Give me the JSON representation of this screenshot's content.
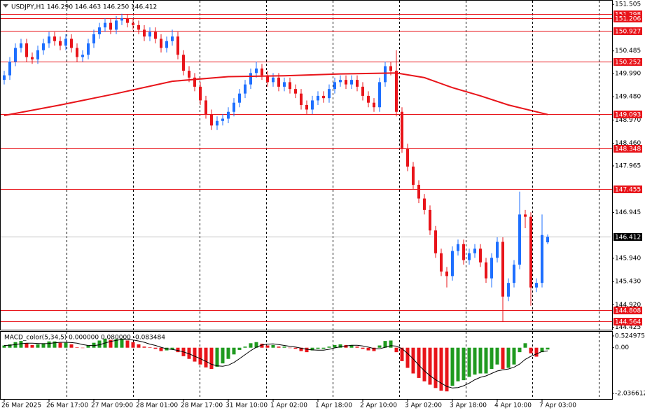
{
  "chart_data": {
    "type": "candlestick",
    "title": "USDJPY,H1  146.290 146.463 146.250 146.412",
    "open": [
      149.85,
      149.95,
      150.25,
      150.55,
      150.65,
      150.35,
      150.3,
      150.5,
      150.65,
      150.8,
      150.7,
      150.6,
      150.75,
      150.55,
      150.35,
      150.4,
      150.65,
      150.85,
      151.0,
      151.1,
      150.95,
      151.15,
      151.2,
      151.1,
      151.05,
      150.95,
      150.8,
      150.9,
      150.75,
      150.55,
      150.7,
      150.8,
      150.4,
      150.05,
      149.9,
      149.7,
      149.4,
      149.1,
      148.85,
      148.95,
      149.0,
      149.15,
      149.35,
      149.55,
      149.75,
      150.0,
      150.1,
      149.95,
      149.8,
      149.9,
      149.7,
      149.8,
      149.65,
      149.55,
      149.3,
      149.2,
      149.4,
      149.5,
      149.45,
      149.65,
      149.8,
      149.85,
      149.75,
      149.85,
      149.7,
      149.5,
      149.35,
      149.25,
      149.8,
      150.15,
      150.05,
      149.15,
      148.35,
      147.95,
      147.55,
      147.25,
      147.0,
      146.55,
      146.05,
      145.65,
      145.55,
      146.1,
      146.25,
      145.9,
      146.05,
      146.15,
      145.85,
      145.5,
      145.95,
      146.3,
      145.1,
      145.4,
      145.8,
      146.9,
      146.85,
      145.3,
      145.4,
      146.29
    ],
    "high": [
      150.05,
      150.35,
      150.65,
      150.75,
      150.75,
      150.45,
      150.6,
      150.75,
      150.9,
      150.9,
      150.8,
      150.85,
      150.85,
      150.65,
      150.5,
      150.75,
      150.95,
      151.1,
      151.2,
      151.2,
      151.25,
      151.3,
      151.28,
      151.2,
      151.15,
      151.05,
      151.0,
      151.0,
      150.85,
      150.8,
      150.95,
      150.9,
      150.5,
      150.15,
      150.0,
      149.8,
      149.5,
      149.2,
      149.05,
      149.1,
      149.25,
      149.45,
      149.65,
      149.85,
      150.1,
      150.25,
      150.2,
      150.05,
      150.0,
      150.0,
      149.9,
      149.9,
      149.75,
      149.65,
      149.4,
      149.5,
      149.6,
      149.6,
      149.75,
      149.9,
      149.95,
      149.95,
      149.95,
      149.95,
      149.8,
      149.6,
      149.45,
      149.9,
      150.25,
      150.25,
      150.5,
      149.25,
      148.45,
      148.05,
      147.65,
      147.35,
      147.1,
      146.65,
      146.15,
      145.75,
      146.2,
      146.35,
      146.35,
      146.15,
      146.25,
      146.25,
      145.95,
      146.05,
      146.4,
      146.4,
      145.5,
      145.9,
      147.4,
      147.0,
      146.95,
      145.5,
      146.9,
      146.463
    ],
    "low": [
      149.75,
      149.85,
      150.15,
      150.45,
      150.25,
      150.2,
      150.2,
      150.4,
      150.55,
      150.6,
      150.5,
      150.5,
      150.45,
      150.25,
      150.25,
      150.3,
      150.55,
      150.75,
      150.9,
      150.85,
      150.85,
      151.05,
      151.0,
      150.95,
      150.85,
      150.7,
      150.7,
      150.65,
      150.45,
      150.45,
      150.6,
      150.3,
      149.95,
      149.8,
      149.6,
      149.3,
      149.0,
      148.75,
      148.75,
      148.85,
      148.9,
      149.05,
      149.25,
      149.45,
      149.65,
      149.9,
      149.85,
      149.7,
      149.7,
      149.6,
      149.6,
      149.55,
      149.45,
      149.2,
      149.1,
      149.1,
      149.3,
      149.35,
      149.35,
      149.55,
      149.7,
      149.65,
      149.65,
      149.6,
      149.4,
      149.25,
      149.15,
      149.15,
      149.7,
      149.95,
      149.05,
      148.25,
      147.85,
      147.45,
      147.15,
      146.9,
      146.45,
      145.95,
      145.55,
      145.3,
      145.45,
      146.0,
      145.8,
      145.8,
      145.95,
      145.75,
      145.4,
      145.3,
      145.85,
      144.55,
      145.0,
      145.3,
      145.7,
      146.6,
      144.9,
      145.2,
      145.3,
      146.25
    ],
    "close": [
      149.95,
      150.25,
      150.55,
      150.65,
      150.35,
      150.3,
      150.5,
      150.65,
      150.8,
      150.7,
      150.6,
      150.75,
      150.55,
      150.35,
      150.4,
      150.65,
      150.85,
      151.0,
      151.1,
      150.95,
      151.15,
      151.2,
      151.1,
      151.05,
      150.95,
      150.8,
      150.9,
      150.75,
      150.55,
      150.7,
      150.8,
      150.4,
      150.05,
      149.9,
      149.7,
      149.4,
      149.1,
      148.85,
      148.95,
      149.0,
      149.15,
      149.35,
      149.55,
      149.75,
      150.0,
      150.1,
      149.95,
      149.8,
      149.9,
      149.7,
      149.8,
      149.65,
      149.55,
      149.3,
      149.2,
      149.4,
      149.5,
      149.45,
      149.65,
      149.8,
      149.85,
      149.75,
      149.85,
      149.7,
      149.5,
      149.35,
      149.25,
      149.8,
      150.15,
      150.05,
      149.15,
      148.35,
      147.95,
      147.55,
      147.25,
      147.0,
      146.55,
      146.05,
      145.65,
      145.55,
      146.1,
      146.25,
      145.9,
      146.05,
      146.15,
      145.85,
      145.5,
      145.95,
      146.3,
      145.1,
      145.4,
      145.8,
      146.9,
      146.85,
      145.3,
      145.4,
      146.45,
      146.412
    ],
    "up_color": "#1e6fff",
    "down_color": "#e8141a",
    "xlim": [
      -0.75,
      108.5
    ],
    "xticks": [
      {
        "value": 0,
        "label": "26 Mar 2025"
      },
      {
        "value": 8,
        "label": "26 Mar 17:00"
      },
      {
        "value": 16,
        "label": "27 Mar 09:00"
      },
      {
        "value": 24,
        "label": "28 Mar 01:00"
      },
      {
        "value": 32,
        "label": "28 Mar 17:00"
      },
      {
        "value": 40,
        "label": "31 Mar 10:00"
      },
      {
        "value": 48,
        "label": "1 Apr 02:00"
      },
      {
        "value": 56,
        "label": "1 Apr 18:00"
      },
      {
        "value": 64,
        "label": "2 Apr 10:00"
      },
      {
        "value": 72,
        "label": "3 Apr 02:00"
      },
      {
        "value": 80,
        "label": "3 Apr 18:00"
      },
      {
        "value": 88,
        "label": "4 Apr 10:00"
      },
      {
        "value": 96,
        "label": "7 Apr 03:00"
      }
    ],
    "xgrid": [
      11.125,
      23,
      34.875,
      46.75,
      58.625,
      70.5,
      82.375,
      94.25,
      106.125
    ],
    "ylim": [
      144.39,
      151.57
    ],
    "yticks": [
      151.505,
      150.485,
      {
        "value": 149.99,
        "label": "149.990"
      },
      {
        "value": 149.48,
        "label": "149.480"
      },
      {
        "value": 148.97,
        "label": "148.970"
      },
      {
        "value": 148.46,
        "label": "148.460"
      },
      147.965,
      146.945,
      {
        "value": 145.94,
        "label": "145.940"
      },
      {
        "value": 145.43,
        "label": "145.430"
      },
      {
        "value": 144.92,
        "label": "144.920"
      },
      144.425
    ],
    "levels": [
      151.298,
      151.206,
      150.927,
      150.252,
      149.093,
      148.348,
      147.455,
      144.808,
      144.564
    ],
    "level_color": "#e8141a",
    "ma": {
      "x": [
        0,
        10,
        20,
        30,
        40,
        50,
        60,
        70,
        75,
        80,
        85,
        90,
        97
      ],
      "values": [
        149.07,
        149.3,
        149.55,
        149.82,
        149.92,
        149.94,
        149.98,
        150.0,
        149.9,
        149.68,
        149.5,
        149.3,
        149.09
      ],
      "color": "#e8141a"
    },
    "macd": {
      "label": "MACD_color(5,34,5) 0.000000 0.080000 -0.083484",
      "values": [
        0.1,
        0.15,
        0.25,
        0.3,
        0.2,
        0.12,
        0.15,
        0.2,
        0.28,
        0.28,
        0.22,
        0.22,
        0.15,
        0.02,
        0.0,
        0.1,
        0.22,
        0.32,
        0.4,
        0.35,
        0.38,
        0.4,
        0.32,
        0.25,
        0.15,
        0.05,
        0.02,
        -0.05,
        -0.15,
        -0.12,
        -0.08,
        -0.2,
        -0.38,
        -0.5,
        -0.62,
        -0.75,
        -0.88,
        -0.95,
        -0.85,
        -0.7,
        -0.5,
        -0.3,
        -0.1,
        0.05,
        0.2,
        0.25,
        0.18,
        0.1,
        0.12,
        0.05,
        0.05,
        0.0,
        -0.05,
        -0.15,
        -0.2,
        -0.12,
        -0.05,
        -0.05,
        0.05,
        0.12,
        0.15,
        0.12,
        0.12,
        0.05,
        -0.05,
        -0.12,
        -0.15,
        0.1,
        0.3,
        0.32,
        -0.2,
        -0.6,
        -0.9,
        -1.15,
        -1.35,
        -1.5,
        -1.65,
        -1.8,
        -1.92,
        -1.95,
        -1.7,
        -1.5,
        -1.45,
        -1.3,
        -1.2,
        -1.15,
        -1.15,
        -0.95,
        -0.75,
        -0.95,
        -0.9,
        -0.75,
        -0.2,
        0.2,
        -0.25,
        -0.4,
        -0.2,
        -0.08
      ],
      "signal": [
        0.1,
        0.11,
        0.14,
        0.18,
        0.2,
        0.2,
        0.19,
        0.18,
        0.19,
        0.22,
        0.24,
        0.24,
        0.23,
        0.2,
        0.14,
        0.1,
        0.09,
        0.13,
        0.21,
        0.28,
        0.33,
        0.37,
        0.37,
        0.34,
        0.3,
        0.24,
        0.16,
        0.1,
        0.02,
        -0.05,
        -0.08,
        -0.12,
        -0.19,
        -0.27,
        -0.38,
        -0.49,
        -0.61,
        -0.74,
        -0.81,
        -0.83,
        -0.78,
        -0.66,
        -0.49,
        -0.31,
        -0.13,
        0.02,
        0.12,
        0.16,
        0.17,
        0.14,
        0.1,
        0.06,
        0.03,
        -0.02,
        -0.07,
        -0.1,
        -0.11,
        -0.11,
        -0.07,
        -0.01,
        0.04,
        0.08,
        0.11,
        0.11,
        0.08,
        0.03,
        -0.04,
        -0.05,
        0.02,
        0.09,
        0.07,
        -0.04,
        -0.26,
        -0.5,
        -0.78,
        -1.03,
        -1.25,
        -1.43,
        -1.58,
        -1.73,
        -1.8,
        -1.78,
        -1.7,
        -1.58,
        -1.43,
        -1.32,
        -1.26,
        -1.15,
        -1.04,
        -0.99,
        -0.95,
        -0.87,
        -0.73,
        -0.52,
        -0.38,
        -0.28,
        -0.17,
        -0.14
      ],
      "up_color": "#1f9a1f",
      "down_color": "#e8141a",
      "ylim": [
        -2.29,
        0.71
      ],
      "yticks": [
        0.524975,
        {
          "value": 0,
          "label": "0.00"
        },
        -2.036612
      ]
    }
  }
}
